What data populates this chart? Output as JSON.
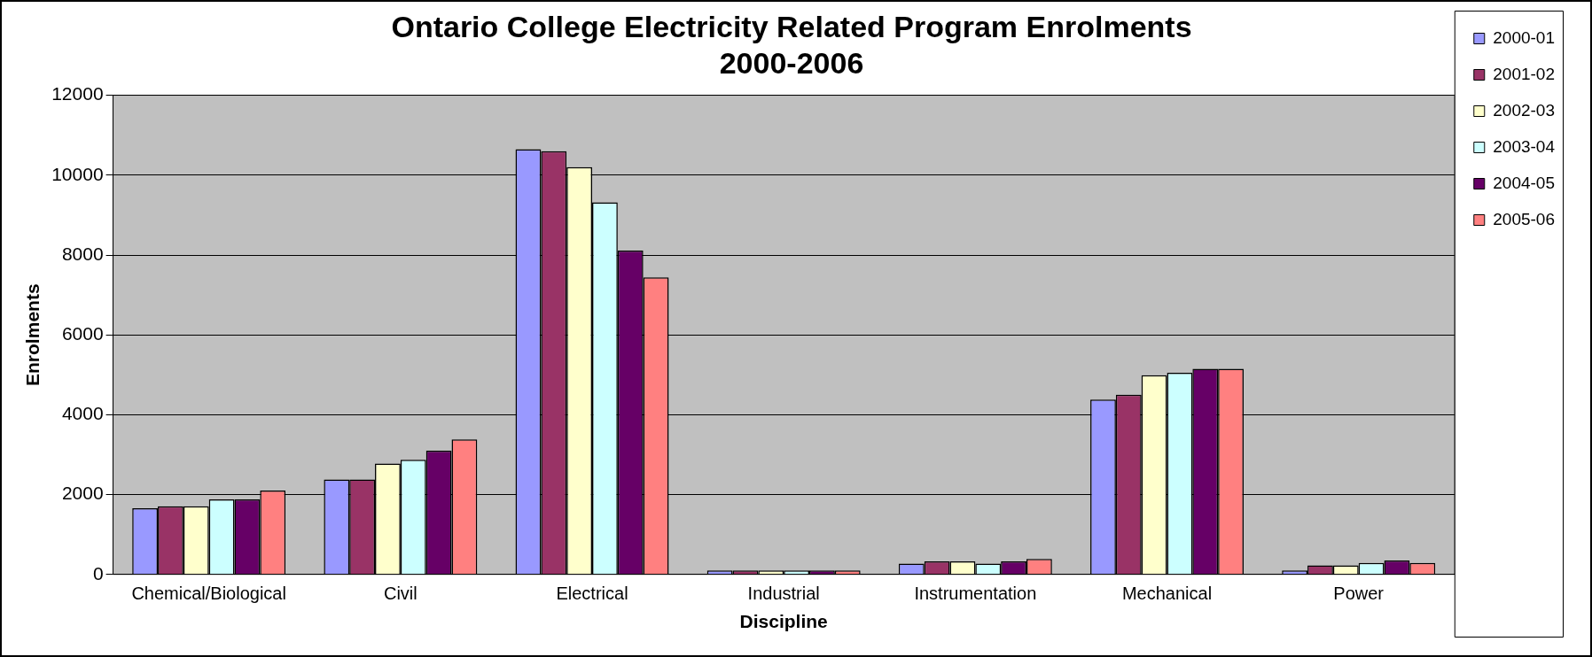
{
  "chart_data": {
    "type": "bar",
    "title": "Ontario College Electricity Related Program Enrolments\n2000-2006",
    "xlabel": "Discipline",
    "ylabel": "Enrolments",
    "categories": [
      "Chemical/Biological",
      "Civil",
      "Electrical",
      "Industrial",
      "Instrumentation",
      "Mechanical",
      "Power"
    ],
    "series": [
      {
        "name": "2000-01",
        "color": "#9999ff",
        "values": [
          1660,
          2380,
          10650,
          100,
          270,
          4380,
          100
        ]
      },
      {
        "name": "2001-02",
        "color": "#993366",
        "values": [
          1710,
          2380,
          10600,
          100,
          330,
          4500,
          230
        ]
      },
      {
        "name": "2002-03",
        "color": "#ffffcc",
        "values": [
          1710,
          2780,
          10200,
          100,
          330,
          4990,
          230
        ]
      },
      {
        "name": "2003-04",
        "color": "#ccffff",
        "values": [
          1880,
          2870,
          9320,
          100,
          270,
          5050,
          290
        ]
      },
      {
        "name": "2004-05",
        "color": "#660066",
        "values": [
          1880,
          3100,
          8110,
          100,
          330,
          5150,
          350
        ]
      },
      {
        "name": "2005-06",
        "color": "#ff8080",
        "values": [
          2100,
          3380,
          7440,
          100,
          390,
          5150,
          290
        ]
      }
    ],
    "ylim": [
      0,
      12000
    ],
    "yticks": [
      0,
      2000,
      4000,
      6000,
      8000,
      10000,
      12000
    ],
    "grid": "y",
    "legend": "right"
  }
}
